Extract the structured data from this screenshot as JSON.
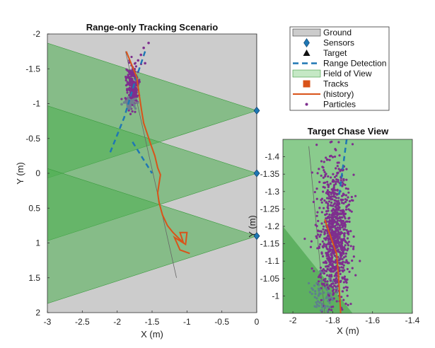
{
  "chart_data": [
    {
      "type": "scatter",
      "title": "Range-only Tracking Scenario",
      "xlabel": "X (m)",
      "ylabel": "Y (m)",
      "xlim": [
        -3,
        0
      ],
      "ylim": [
        -2,
        2
      ],
      "y_reversed": true,
      "xticks": [
        "-3",
        "-2.5",
        "-2",
        "-1.5",
        "-1",
        "-0.5",
        "0"
      ],
      "yticks": [
        "-2",
        "-1.5",
        "-1",
        "-0.5",
        "0",
        "0.5",
        "1",
        "1.5",
        "2"
      ],
      "ground_color": "#cccccc",
      "fov_color": "#4caf50",
      "sensors": [
        {
          "x": 0,
          "y": -0.9
        },
        {
          "x": 0,
          "y": 0
        },
        {
          "x": 0,
          "y": 0.9
        }
      ],
      "fov_vertex_y": [
        -0.9,
        0,
        0.9
      ],
      "fov_far_y": [
        [
          -2.0,
          0.2
        ],
        [
          -1.1,
          1.1
        ],
        [
          -0.2,
          2.0
        ]
      ],
      "target_truth": {
        "x": [
          -1.88,
          -1.15
        ],
        "y": [
          -1.75,
          1.5
        ]
      },
      "range_detection": {
        "x": [
          -1.6,
          -1.75,
          -1.9,
          -2.1
        ],
        "y": [
          -1.75,
          -1.3,
          -0.8,
          -0.3
        ]
      },
      "range_detection2": {
        "x": [
          -1.78,
          -1.5
        ],
        "y": [
          -0.45,
          0.0
        ]
      },
      "track_history": {
        "x": [
          -1.87,
          -1.72,
          -1.68,
          -1.65,
          -1.62,
          -1.58,
          -1.52,
          -1.46,
          -1.42,
          -1.38,
          -1.4,
          -1.42,
          -1.4,
          -1.35,
          -1.28,
          -1.2,
          -1.05,
          -1.1,
          -1.0,
          -1.02,
          -1.18,
          -1.1,
          -0.96
        ],
        "y": [
          -1.75,
          -1.38,
          -1.1,
          -0.9,
          -0.72,
          -0.6,
          -0.42,
          -0.25,
          -0.08,
          0.02,
          0.15,
          0.28,
          0.42,
          0.6,
          0.75,
          0.85,
          1.0,
          0.85,
          0.85,
          1.02,
          0.92,
          1.1,
          1.15
        ]
      },
      "particles_center": {
        "x": -1.78,
        "y": -1.25
      },
      "particles_extra": {
        "x": [
          -1.62,
          -1.55,
          -1.66,
          -1.6,
          -1.7
        ],
        "y": [
          -1.8,
          -1.87,
          -1.7,
          -1.58,
          -1.62
        ]
      }
    },
    {
      "type": "scatter",
      "title": "Target Chase View",
      "xlabel": "X (m)",
      "ylabel": "Y (m)",
      "xlim": [
        -2.05,
        -1.4
      ],
      "ylim": [
        -0.95,
        -1.45
      ],
      "xticks": [
        "-2",
        "-1.8",
        "-1.6",
        "-1.4"
      ],
      "yticks": [
        "-1.4",
        "-1.35",
        "-1.3",
        "-1.25",
        "-1.2",
        "-1.15",
        "-1.1",
        "-1.05",
        "-1"
      ],
      "particles_center": {
        "x": -1.79,
        "y": -1.18
      },
      "track_history": {
        "x": [
          -1.84,
          -1.78,
          -1.77,
          -1.76
        ],
        "y": [
          -1.22,
          -1.12,
          -1.05,
          -0.95
        ]
      },
      "target_truth": {
        "x": [
          -1.92,
          -1.84
        ],
        "y": [
          -1.43,
          -0.95
        ]
      },
      "range_detection": {
        "x": [
          -1.73,
          -1.77
        ],
        "y": [
          -1.45,
          -1.28
        ]
      }
    }
  ],
  "legend": {
    "placement": "top-right",
    "entries": [
      {
        "label": "Ground",
        "marker": "rect-gray"
      },
      {
        "label": "Sensors",
        "marker": "diamond"
      },
      {
        "label": "Target",
        "marker": "triangle"
      },
      {
        "label": "Range Detection",
        "marker": "dashed-line"
      },
      {
        "label": "Field of View",
        "marker": "rect-green"
      },
      {
        "label": "Tracks",
        "marker": "square-orange"
      },
      {
        "label": "(history)",
        "marker": "line-orange"
      },
      {
        "label": "Particles",
        "marker": "dot-purple"
      }
    ]
  },
  "colors": {
    "ground": "#cccccc",
    "fov": "#4caf50",
    "sensor": "#1f77b4",
    "detection": "#1f77b4",
    "track": "#d95319",
    "particle": "#7e2f8e",
    "target": "#111111"
  }
}
